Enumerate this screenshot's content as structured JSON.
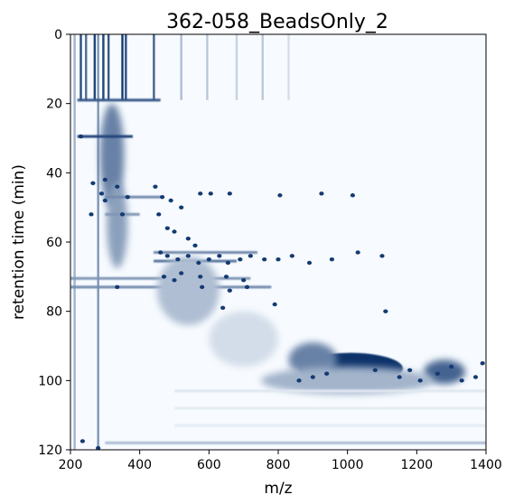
{
  "chart_data": {
    "type": "heatmap",
    "title": "362-058_BeadsOnly_2",
    "xlabel": "m/z",
    "ylabel": "retention time (min)",
    "xlim": [
      200,
      1400
    ],
    "ylim": [
      120,
      0
    ],
    "x_ticks": [
      200,
      400,
      600,
      800,
      1000,
      1200,
      1400
    ],
    "y_ticks": [
      0,
      20,
      40,
      60,
      80,
      100,
      120
    ],
    "colormap": "Blues",
    "colors": {
      "low": "#f7fbff",
      "high": "#08306b"
    },
    "features": [
      {
        "kind": "vertical_streak",
        "mz": 212,
        "rt_start": 0,
        "rt_end": 120,
        "intensity": 0.35
      },
      {
        "kind": "vertical_streak",
        "mz": 230,
        "rt_start": 0,
        "rt_end": 19,
        "intensity": 0.85
      },
      {
        "kind": "vertical_streak",
        "mz": 245,
        "rt_start": 0,
        "rt_end": 19,
        "intensity": 0.7
      },
      {
        "kind": "vertical_streak",
        "mz": 270,
        "rt_start": 0,
        "rt_end": 19,
        "intensity": 0.9
      },
      {
        "kind": "vertical_streak",
        "mz": 280,
        "rt_start": 0,
        "rt_end": 120,
        "intensity": 0.5
      },
      {
        "kind": "vertical_streak",
        "mz": 295,
        "rt_start": 0,
        "rt_end": 19,
        "intensity": 0.9
      },
      {
        "kind": "vertical_streak",
        "mz": 310,
        "rt_start": 0,
        "rt_end": 19,
        "intensity": 0.8
      },
      {
        "kind": "vertical_streak",
        "mz": 350,
        "rt_start": 0,
        "rt_end": 19,
        "intensity": 0.95
      },
      {
        "kind": "vertical_streak",
        "mz": 360,
        "rt_start": 0,
        "rt_end": 19,
        "intensity": 0.85
      },
      {
        "kind": "vertical_streak",
        "mz": 441,
        "rt_start": 0,
        "rt_end": 19,
        "intensity": 0.75
      },
      {
        "kind": "vertical_streak",
        "mz": 520,
        "rt_start": 0,
        "rt_end": 19,
        "intensity": 0.3
      },
      {
        "kind": "vertical_streak",
        "mz": 595,
        "rt_start": 0,
        "rt_end": 19,
        "intensity": 0.25
      },
      {
        "kind": "vertical_streak",
        "mz": 680,
        "rt_start": 0,
        "rt_end": 19,
        "intensity": 0.2
      },
      {
        "kind": "vertical_streak",
        "mz": 755,
        "rt_start": 0,
        "rt_end": 19,
        "intensity": 0.25
      },
      {
        "kind": "vertical_streak",
        "mz": 830,
        "rt_start": 0,
        "rt_end": 19,
        "intensity": 0.15
      },
      {
        "kind": "horizontal_band",
        "rt": 19,
        "mz_start": 220,
        "mz_end": 460,
        "intensity": 0.8
      },
      {
        "kind": "blob",
        "mz": 320,
        "rt": 35,
        "w": 70,
        "h": 30,
        "intensity": 0.6
      },
      {
        "kind": "blob",
        "mz": 335,
        "rt": 55,
        "w": 60,
        "h": 25,
        "intensity": 0.45
      },
      {
        "kind": "horizontal_band",
        "rt": 29.5,
        "mz_start": 220,
        "mz_end": 380,
        "intensity": 0.9
      },
      {
        "kind": "horizontal_band",
        "rt": 47,
        "mz_start": 300,
        "mz_end": 460,
        "intensity": 0.55
      },
      {
        "kind": "horizontal_band",
        "rt": 52,
        "mz_start": 300,
        "mz_end": 400,
        "intensity": 0.5
      },
      {
        "kind": "horizontal_band",
        "rt": 63,
        "mz_start": 440,
        "mz_end": 740,
        "intensity": 0.55
      },
      {
        "kind": "horizontal_band",
        "rt": 65.5,
        "mz_start": 440,
        "mz_end": 680,
        "intensity": 0.65
      },
      {
        "kind": "horizontal_band",
        "rt": 70.5,
        "mz_start": 200,
        "mz_end": 720,
        "intensity": 0.5
      },
      {
        "kind": "horizontal_band",
        "rt": 73,
        "mz_start": 200,
        "mz_end": 780,
        "intensity": 0.55
      },
      {
        "kind": "blob",
        "mz": 540,
        "rt": 74,
        "w": 180,
        "h": 20,
        "intensity": 0.3
      },
      {
        "kind": "blob",
        "mz": 700,
        "rt": 88,
        "w": 200,
        "h": 16,
        "intensity": 0.15
      },
      {
        "kind": "blob",
        "mz": 1010,
        "rt": 96.5,
        "w": 300,
        "h": 9,
        "intensity": 1.0
      },
      {
        "kind": "blob",
        "mz": 1280,
        "rt": 97.5,
        "w": 120,
        "h": 7,
        "intensity": 0.75
      },
      {
        "kind": "blob",
        "mz": 900,
        "rt": 94,
        "w": 140,
        "h": 10,
        "intensity": 0.6
      },
      {
        "kind": "blob",
        "mz": 1000,
        "rt": 100,
        "w": 500,
        "h": 8,
        "intensity": 0.35
      },
      {
        "kind": "horizontal_band",
        "rt": 118,
        "mz_start": 300,
        "mz_end": 1400,
        "intensity": 0.3
      },
      {
        "kind": "horizontal_band",
        "rt": 103,
        "mz_start": 500,
        "mz_end": 1400,
        "intensity": 0.1
      },
      {
        "kind": "horizontal_band",
        "rt": 108,
        "mz_start": 500,
        "mz_end": 1400,
        "intensity": 0.08
      },
      {
        "kind": "horizontal_band",
        "rt": 113,
        "mz_start": 500,
        "mz_end": 1400,
        "intensity": 0.08
      }
    ],
    "peaks": [
      {
        "mz": 230,
        "rt": 29.5
      },
      {
        "mz": 235,
        "rt": 117.5
      },
      {
        "mz": 280,
        "rt": 119.5
      },
      {
        "mz": 265,
        "rt": 43
      },
      {
        "mz": 300,
        "rt": 42
      },
      {
        "mz": 290,
        "rt": 46
      },
      {
        "mz": 335,
        "rt": 44
      },
      {
        "mz": 300,
        "rt": 48
      },
      {
        "mz": 350,
        "rt": 52
      },
      {
        "mz": 365,
        "rt": 47
      },
      {
        "mz": 260,
        "rt": 52
      },
      {
        "mz": 445,
        "rt": 44
      },
      {
        "mz": 465,
        "rt": 47
      },
      {
        "mz": 490,
        "rt": 48
      },
      {
        "mz": 520,
        "rt": 50
      },
      {
        "mz": 575,
        "rt": 46
      },
      {
        "mz": 605,
        "rt": 46
      },
      {
        "mz": 660,
        "rt": 46
      },
      {
        "mz": 805,
        "rt": 46.5
      },
      {
        "mz": 925,
        "rt": 46
      },
      {
        "mz": 1015,
        "rt": 46.5
      },
      {
        "mz": 455,
        "rt": 52
      },
      {
        "mz": 480,
        "rt": 56
      },
      {
        "mz": 500,
        "rt": 57
      },
      {
        "mz": 540,
        "rt": 59
      },
      {
        "mz": 560,
        "rt": 61
      },
      {
        "mz": 460,
        "rt": 63
      },
      {
        "mz": 480,
        "rt": 64
      },
      {
        "mz": 510,
        "rt": 65
      },
      {
        "mz": 540,
        "rt": 64
      },
      {
        "mz": 570,
        "rt": 66
      },
      {
        "mz": 600,
        "rt": 65
      },
      {
        "mz": 630,
        "rt": 64
      },
      {
        "mz": 655,
        "rt": 66
      },
      {
        "mz": 690,
        "rt": 65
      },
      {
        "mz": 720,
        "rt": 64
      },
      {
        "mz": 760,
        "rt": 65
      },
      {
        "mz": 800,
        "rt": 65
      },
      {
        "mz": 840,
        "rt": 64
      },
      {
        "mz": 890,
        "rt": 66
      },
      {
        "mz": 955,
        "rt": 65
      },
      {
        "mz": 1030,
        "rt": 63
      },
      {
        "mz": 1100,
        "rt": 64
      },
      {
        "mz": 470,
        "rt": 70
      },
      {
        "mz": 500,
        "rt": 71
      },
      {
        "mz": 520,
        "rt": 69
      },
      {
        "mz": 575,
        "rt": 70
      },
      {
        "mz": 650,
        "rt": 70
      },
      {
        "mz": 700,
        "rt": 71
      },
      {
        "mz": 335,
        "rt": 73
      },
      {
        "mz": 580,
        "rt": 73
      },
      {
        "mz": 660,
        "rt": 74
      },
      {
        "mz": 710,
        "rt": 73
      },
      {
        "mz": 790,
        "rt": 78
      },
      {
        "mz": 640,
        "rt": 79
      },
      {
        "mz": 1110,
        "rt": 80
      },
      {
        "mz": 900,
        "rt": 99
      },
      {
        "mz": 940,
        "rt": 98
      },
      {
        "mz": 1080,
        "rt": 97
      },
      {
        "mz": 1150,
        "rt": 99
      },
      {
        "mz": 1210,
        "rt": 100
      },
      {
        "mz": 1260,
        "rt": 98
      },
      {
        "mz": 1330,
        "rt": 100
      },
      {
        "mz": 1370,
        "rt": 99
      },
      {
        "mz": 1300,
        "rt": 96
      },
      {
        "mz": 1390,
        "rt": 95
      },
      {
        "mz": 860,
        "rt": 100
      },
      {
        "mz": 1180,
        "rt": 97
      }
    ]
  }
}
